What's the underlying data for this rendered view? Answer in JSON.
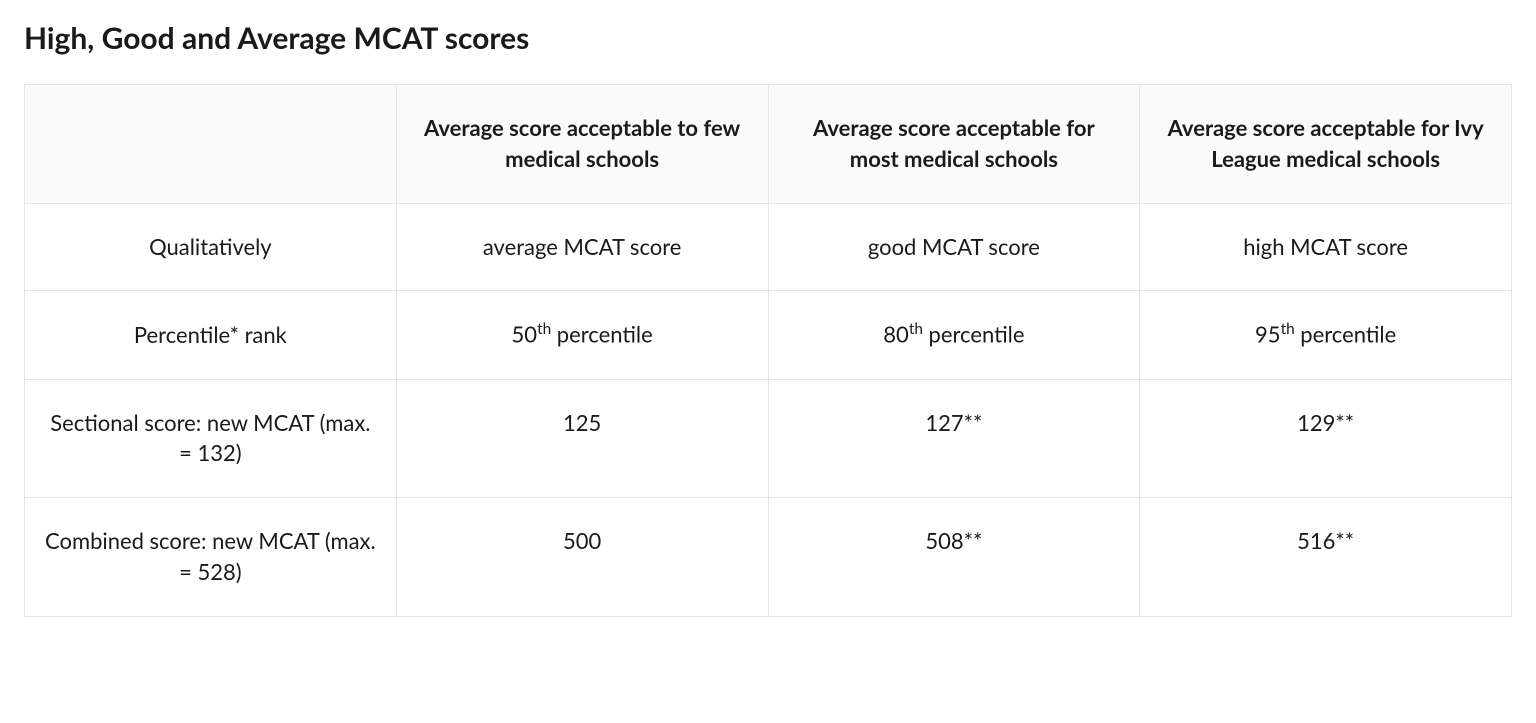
{
  "title": "High, Good and Average MCAT scores",
  "table": {
    "headers": [
      "",
      "Average score acceptable to few medical schools",
      "Average score acceptable for most medical schools",
      "Average score acceptable for Ivy League medical schools"
    ],
    "rows": [
      {
        "label": "Qualitatively",
        "cells": [
          "average MCAT score",
          "good MCAT score",
          "high MCAT score"
        ]
      },
      {
        "label": "Percentile* rank",
        "percentile": true,
        "cells_pct": [
          {
            "num": "50",
            "suffix": " percentile"
          },
          {
            "num": "80",
            "suffix": " percentile"
          },
          {
            "num": "95",
            "suffix": " percentile"
          }
        ]
      },
      {
        "label": "Sectional score: new MCAT (max. = 132)",
        "cells": [
          "125",
          "127**",
          "129**"
        ],
        "valign_top": true
      },
      {
        "label": "Combined score: new MCAT (max. = 528)",
        "cells": [
          "500",
          "508**",
          "516**"
        ],
        "valign_top": true
      }
    ],
    "styling": {
      "border_color": "#e5e5e5",
      "header_bg": "#fafafa",
      "cell_bg": "#ffffff",
      "text_color": "#1a1a1a",
      "font_size_cell": 22,
      "font_size_title": 30,
      "font_weight_header": 700,
      "font_weight_cell": 400,
      "cell_padding": "28px 20px",
      "column_widths": [
        "25%",
        "25%",
        "25%",
        "25%"
      ]
    }
  }
}
